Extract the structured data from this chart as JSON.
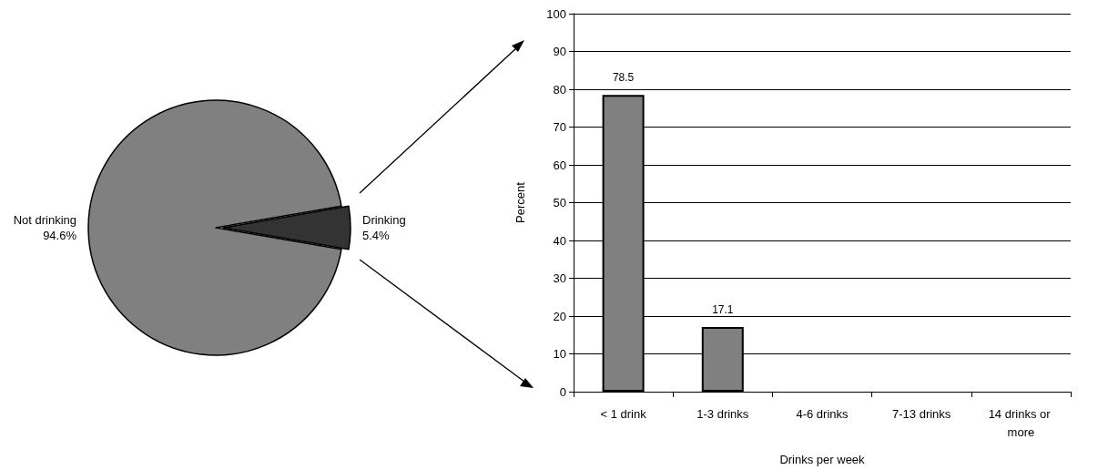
{
  "chart_data": [
    {
      "type": "pie",
      "categories": [
        "Not drinking",
        "Drinking"
      ],
      "values": [
        94.6,
        5.4
      ],
      "value_labels": [
        "94.6%",
        "5.4%"
      ],
      "colors": [
        "#808080",
        "#333333"
      ],
      "legend": false
    },
    {
      "type": "bar",
      "categories": [
        "< 1 drink",
        "1-3 drinks",
        "4-6 drinks",
        "7-13 drinks",
        "14 drinks or more"
      ],
      "values": [
        78.5,
        17.1,
        null,
        null,
        null
      ],
      "value_labels": [
        "78.5",
        "17.1",
        null,
        null,
        null
      ],
      "color": "#808080",
      "ylabel": "Percent",
      "xlabel": "Drinks per week",
      "ylim": [
        0,
        100
      ],
      "yticks": [
        0,
        10,
        20,
        30,
        40,
        50,
        60,
        70,
        80,
        90,
        100
      ],
      "grid": "y",
      "legend": false
    }
  ]
}
